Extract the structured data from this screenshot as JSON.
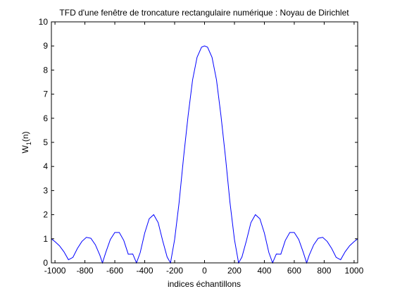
{
  "chart_data": {
    "type": "line",
    "title": "TFD d'une fenêtre de troncature rectangulaire numérique : Noyau de Dirichlet",
    "xlabel": "indices échantillons",
    "ylabel": {
      "main": "W",
      "sub": "1",
      "rest": "(n)"
    },
    "xlim": [
      -1024,
      1024
    ],
    "ylim": [
      0,
      10
    ],
    "xticks": [
      -1000,
      -800,
      -600,
      -400,
      -200,
      0,
      200,
      400,
      600,
      800,
      1000
    ],
    "xtick_labels": [
      "-1000",
      "-800",
      "-600",
      "-400",
      "-200",
      "0",
      "200",
      "400",
      "600",
      "800",
      "1000"
    ],
    "yticks": [
      0,
      1,
      2,
      3,
      4,
      5,
      6,
      7,
      8,
      9,
      10
    ],
    "ytick_labels": [
      "0",
      "1",
      "2",
      "3",
      "4",
      "5",
      "6",
      "7",
      "8",
      "9",
      "10"
    ],
    "grid": false,
    "series": [
      {
        "color": "#0000ff",
        "x": [
          -1024,
          -1000,
          -970,
          -940,
          -910,
          -880,
          -850,
          -820,
          -790,
          -760,
          -730,
          -700,
          -682.7,
          -660,
          -630,
          -600,
          -570,
          -540,
          -510,
          -480,
          -455.1,
          -430,
          -400,
          -370,
          -340,
          -310,
          -280,
          -250,
          -227.6,
          -200,
          -170,
          -140,
          -110,
          -80,
          -50,
          -20,
          0,
          20,
          50,
          80,
          110,
          140,
          170,
          200,
          227.6,
          250,
          280,
          310,
          340,
          370,
          400,
          430,
          455.1,
          480,
          510,
          540,
          570,
          600,
          630,
          660,
          682.7,
          700,
          730,
          760,
          790,
          820,
          850,
          880,
          910,
          940,
          970,
          1000,
          1024
        ],
        "y": [
          1.0,
          0.88,
          0.71,
          0.46,
          0.13,
          0.23,
          0.6,
          0.89,
          1.06,
          1.02,
          0.75,
          0.32,
          0.0,
          0.44,
          0.97,
          1.26,
          1.26,
          0.93,
          0.36,
          0.37,
          0.0,
          0.43,
          1.24,
          1.83,
          2.0,
          1.67,
          0.92,
          0.24,
          0.0,
          0.97,
          2.51,
          4.39,
          6.1,
          7.59,
          8.53,
          8.95,
          9.0,
          8.95,
          8.53,
          7.59,
          6.1,
          4.39,
          2.51,
          0.97,
          0.0,
          0.24,
          0.92,
          1.67,
          2.0,
          1.83,
          1.24,
          0.43,
          0.0,
          0.37,
          0.36,
          0.93,
          1.26,
          1.26,
          0.97,
          0.44,
          0.0,
          0.32,
          0.75,
          1.02,
          1.06,
          0.89,
          0.6,
          0.23,
          0.13,
          0.46,
          0.71,
          0.88,
          1.0
        ]
      }
    ]
  }
}
